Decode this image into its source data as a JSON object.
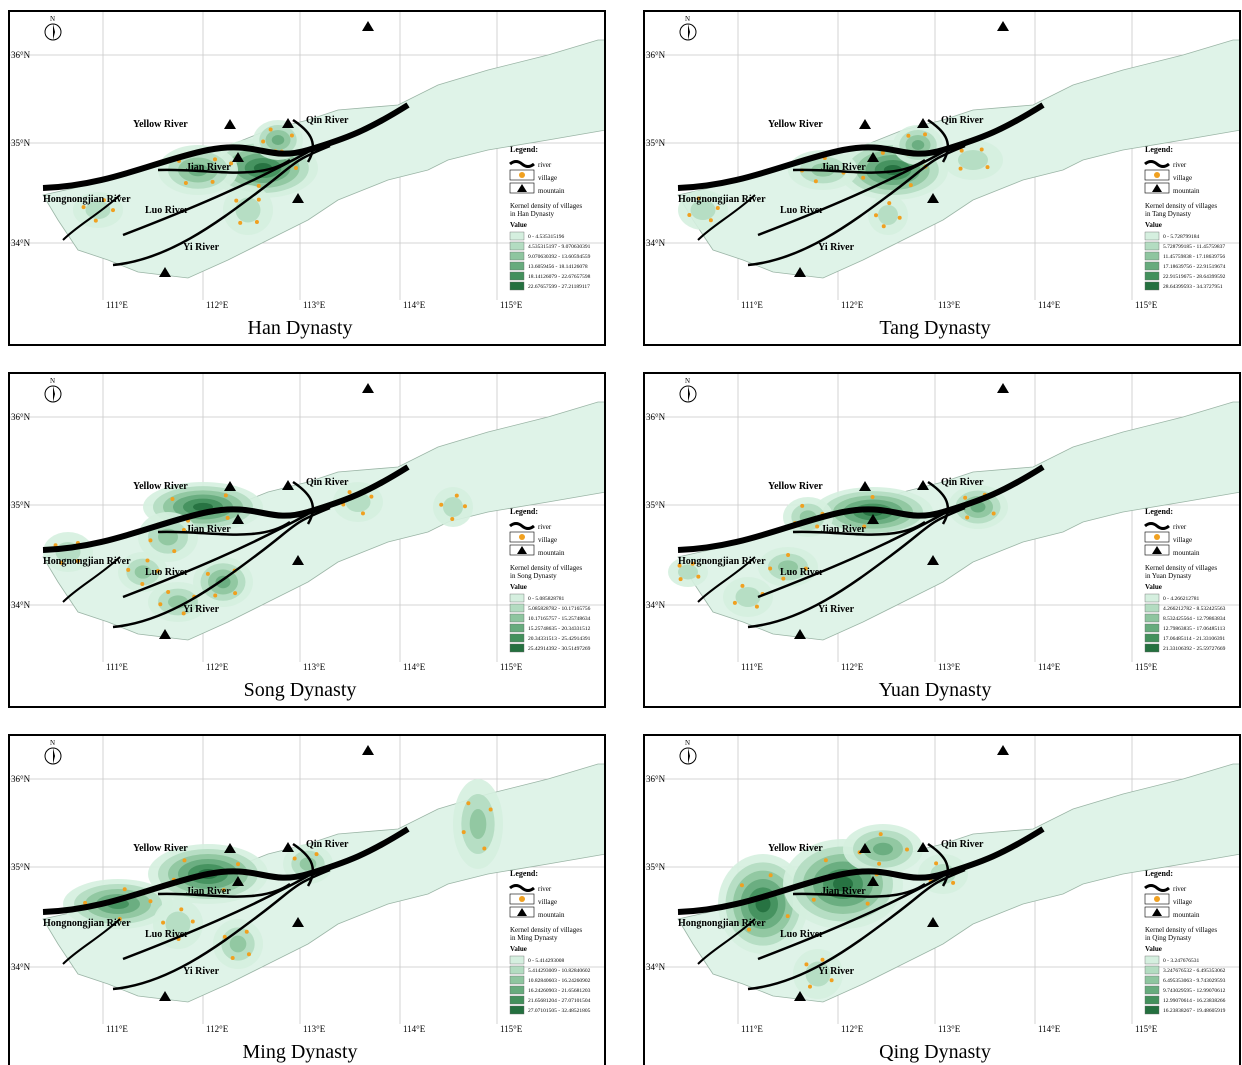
{
  "north": "N",
  "lat_labels": [
    "36°N",
    "35°N",
    "34°N"
  ],
  "lon_labels": [
    "111°E",
    "112°E",
    "113°E",
    "114°E",
    "115°E"
  ],
  "rivers": [
    "Yellow River",
    "Qin River",
    "Jian River",
    "Luo River",
    "Yi River",
    "Hongnongjian River"
  ],
  "legend": {
    "title": "Legend:",
    "items": [
      "river",
      "village",
      "mountain"
    ],
    "caption": "Kernel density of villages",
    "value_heading": "Value"
  },
  "panels": [
    {
      "title": "Han Dynasty",
      "caption": "in Han Dynasty",
      "classes": [
        "0 - 4.535315196",
        "4.535315197 - 9.070630391",
        "9.070630392 - 13.60594559",
        "13.6059456 - 18.14126078",
        "18.14126079 - 22.67657598",
        "22.67657599 - 27.21189117"
      ]
    },
    {
      "title": "Tang Dynasty",
      "caption": "in Tang Dynasty",
      "classes": [
        "0 - 5.728799184",
        "5.728799185 - 11.45759837",
        "11.45759838 - 17.18639756",
        "17.18639756 - 22.91519674",
        "22.91519675 - 28.64399592",
        "28.64399593 - 34.3727951"
      ]
    },
    {
      "title": "Song Dynasty",
      "caption": "in Song Dynasty",
      "classes": [
        "0 - 5.085828781",
        "5.085828782 - 10.17165756",
        "10.17165757 - 15.25748634",
        "15.25748635 - 20.34331512",
        "20.34331513 - 25.42914391",
        "25.42914392 - 30.51497269"
      ]
    },
    {
      "title": "Yuan Dynasty",
      "caption": "in Yuan Dynasty",
      "classes": [
        "0 - 4.266212781",
        "4.266212782 - 8.532425563",
        "8.532425564 - 12.79863834",
        "12.79863835 - 17.06485113",
        "17.06485114 - 21.33106391",
        "21.33106392 - 25.59727669"
      ]
    },
    {
      "title": "Ming Dynasty",
      "caption": "in Ming Dynasty",
      "classes": [
        "0 - 5.414293008",
        "5.414293009 - 10.82840602",
        "10.82840603 - 16.24260902",
        "16.24260903 - 21.65681203",
        "21.65681204 - 27.07101504",
        "27.07101505 - 32.48521805"
      ]
    },
    {
      "title": "Qing Dynasty",
      "caption": "in Qing Dynasty",
      "classes": [
        "0 - 3.247676531",
        "3.247676532 - 6.495353062",
        "6.495353063 - 9.743029593",
        "9.743029595 - 12.99070612",
        "12.99070614 - 16.23838266",
        "16.23838267 - 19.48605919"
      ]
    }
  ]
}
